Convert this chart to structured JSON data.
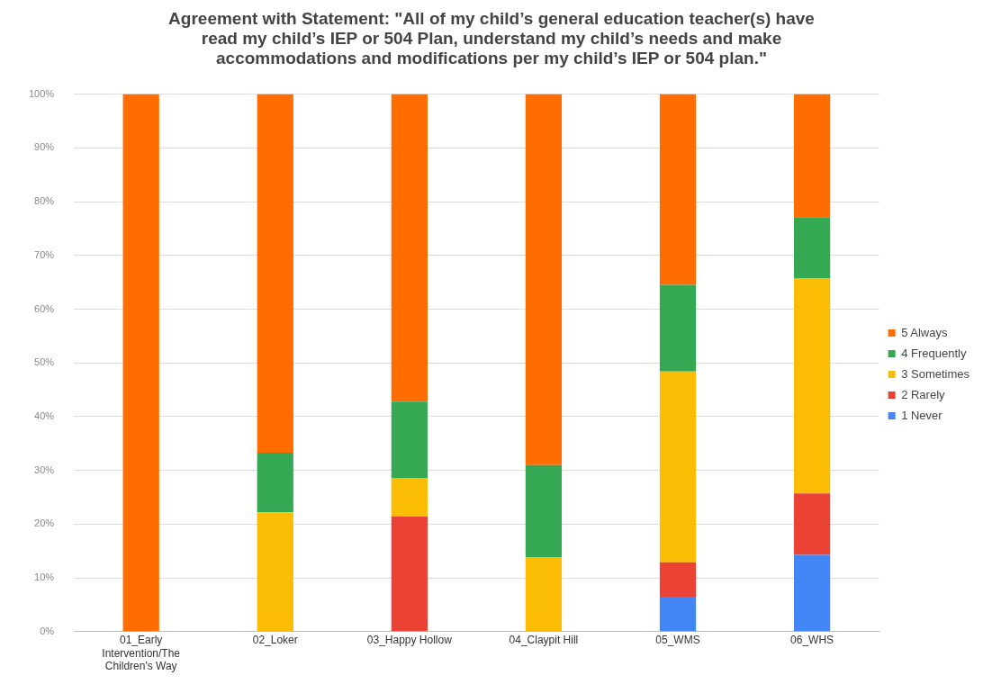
{
  "chart_data": {
    "type": "bar",
    "stacked": true,
    "title": "Agreement with Statement: \"All of my child’s general education teacher(s) have read my child’s IEP or 504 Plan, understand my child’s needs and make accommodations and modifications per my child’s IEP or 504 plan.\"",
    "categories": [
      "01_Early Intervention/The Children's Way",
      "02_Loker",
      "03_Happy Hollow",
      "04_Claypit Hill",
      "05_WMS",
      "06_WHS"
    ],
    "series": [
      {
        "name": "1 Never",
        "color": "#4285f4",
        "values": [
          0,
          0,
          0,
          0,
          6.5,
          14.3
        ]
      },
      {
        "name": "2 Rarely",
        "color": "#ea4335",
        "values": [
          0,
          0,
          21.4,
          0,
          6.4,
          11.4
        ]
      },
      {
        "name": "3 Sometimes",
        "color": "#fbbc04",
        "values": [
          0,
          22.2,
          7.1,
          13.8,
          35.5,
          40
        ]
      },
      {
        "name": "4 Frequently",
        "color": "#34a853",
        "values": [
          0,
          11.1,
          14.3,
          17.2,
          16.1,
          11.4
        ]
      },
      {
        "name": "5 Always",
        "color": "#ff6d01",
        "values": [
          100,
          66.7,
          57.2,
          69,
          35.5,
          22.9
        ]
      }
    ],
    "ylim": [
      0,
      100
    ],
    "yticks": [
      {
        "value": 0,
        "label": "0%"
      },
      {
        "value": 10,
        "label": "10%"
      },
      {
        "value": 20,
        "label": "20%"
      },
      {
        "value": 30,
        "label": "30%"
      },
      {
        "value": 40,
        "label": "40%"
      },
      {
        "value": 50,
        "label": "50%"
      },
      {
        "value": 60,
        "label": "60%"
      },
      {
        "value": 70,
        "label": "70%"
      },
      {
        "value": 80,
        "label": "80%"
      },
      {
        "value": 90,
        "label": "90%"
      },
      {
        "value": 100,
        "label": "100%"
      }
    ],
    "grid": "y",
    "legend": "right"
  }
}
